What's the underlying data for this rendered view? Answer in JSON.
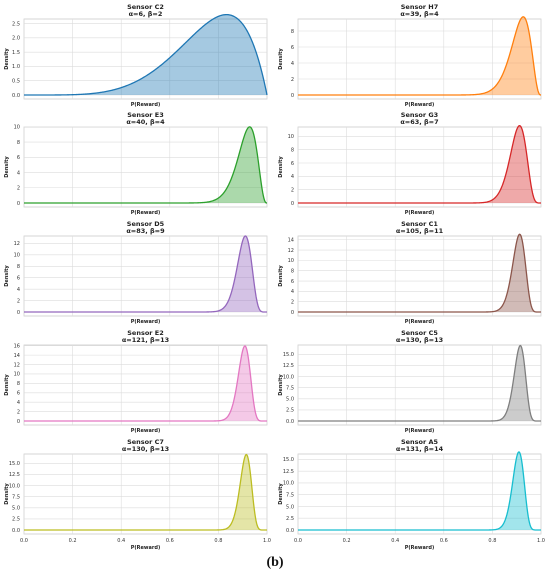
{
  "caption": "(b)",
  "axis_common": {
    "xlabel": "P(Reward)",
    "ylabel": "Density",
    "xlim": [
      0,
      1
    ],
    "xticks": [
      "0.0",
      "0.2",
      "0.4",
      "0.6",
      "0.8",
      "1.0"
    ]
  },
  "chart_data": [
    {
      "type": "area",
      "title": "Sensor C2",
      "subtitle": "α=6, β=2",
      "alpha": 6,
      "beta": 2,
      "color": "#1f77b4",
      "ylim": [
        0,
        2.8
      ],
      "yticks": [
        "0.0",
        "0.5",
        "1.0",
        "1.5",
        "2.0",
        "2.5"
      ],
      "xlabel": "P(Reward)",
      "ylabel": "Density"
    },
    {
      "type": "area",
      "title": "Sensor H7",
      "subtitle": "α=39, β=4",
      "alpha": 39,
      "beta": 4,
      "color": "#ff7f0e",
      "ylim": [
        0,
        10
      ],
      "yticks": [
        "0",
        "2",
        "4",
        "6",
        "8",
        "10"
      ],
      "xlabel": "P(Reward)",
      "ylabel": "Density"
    },
    {
      "type": "area",
      "title": "Sensor E3",
      "subtitle": "α=40, β=4",
      "alpha": 40,
      "beta": 4,
      "color": "#2ca02c",
      "ylim": [
        0,
        10.5
      ],
      "yticks": [
        "0",
        "2",
        "4",
        "6",
        "8",
        "10"
      ],
      "xlabel": "P(Reward)",
      "ylabel": "Density"
    },
    {
      "type": "area",
      "title": "Sensor G3",
      "subtitle": "α=63, β=7",
      "alpha": 63,
      "beta": 7,
      "color": "#d62728",
      "ylim": [
        0,
        12
      ],
      "yticks": [
        "0",
        "2",
        "4",
        "6",
        "8",
        "10",
        "12"
      ],
      "xlabel": "P(Reward)",
      "ylabel": "Density"
    },
    {
      "type": "area",
      "title": "Sensor D5",
      "subtitle": "α=83, β=9",
      "alpha": 83,
      "beta": 9,
      "color": "#9467bd",
      "ylim": [
        0,
        14
      ],
      "yticks": [
        "0",
        "2",
        "4",
        "6",
        "8",
        "10",
        "12"
      ],
      "xlabel": "P(Reward)",
      "ylabel": "Density"
    },
    {
      "type": "area",
      "title": "Sensor C1",
      "subtitle": "α=105, β=11",
      "alpha": 105,
      "beta": 11,
      "color": "#8c564b",
      "ylim": [
        0,
        15.5
      ],
      "yticks": [
        "0",
        "2",
        "4",
        "6",
        "8",
        "10",
        "12",
        "14"
      ],
      "xlabel": "P(Reward)",
      "ylabel": "Density"
    },
    {
      "type": "area",
      "title": "Sensor E2",
      "subtitle": "α=121, β=13",
      "alpha": 121,
      "beta": 13,
      "color": "#e377c2",
      "ylim": [
        0,
        17
      ],
      "yticks": [
        "0",
        "2",
        "4",
        "6",
        "8",
        "10",
        "12",
        "14",
        "16"
      ],
      "xlabel": "P(Reward)",
      "ylabel": "Density"
    },
    {
      "type": "area",
      "title": "Sensor C5",
      "subtitle": "α=130, β=13",
      "alpha": 130,
      "beta": 13,
      "color": "#7f7f7f",
      "ylim": [
        0,
        18
      ],
      "yticks": [
        "0.0",
        "2.5",
        "5.0",
        "7.5",
        "10.0",
        "12.5",
        "15.0",
        "17.5"
      ],
      "xlabel": "P(Reward)",
      "ylabel": "Density"
    },
    {
      "type": "area",
      "title": "Sensor C7",
      "subtitle": "α=130, β=13",
      "alpha": 130,
      "beta": 13,
      "color": "#bcbd22",
      "ylim": [
        0,
        18
      ],
      "yticks": [
        "0.0",
        "2.5",
        "5.0",
        "7.5",
        "10.0",
        "12.5",
        "15.0",
        "17.5"
      ],
      "xlabel": "P(Reward)",
      "ylabel": "Density"
    },
    {
      "type": "area",
      "title": "Sensor A5",
      "subtitle": "α=131, β=14",
      "alpha": 131,
      "beta": 14,
      "color": "#17becf",
      "ylim": [
        0,
        17
      ],
      "yticks": [
        "0.0",
        "2.5",
        "5.0",
        "7.5",
        "10.0",
        "12.5",
        "15.0"
      ],
      "xlabel": "P(Reward)",
      "ylabel": "Density"
    }
  ]
}
